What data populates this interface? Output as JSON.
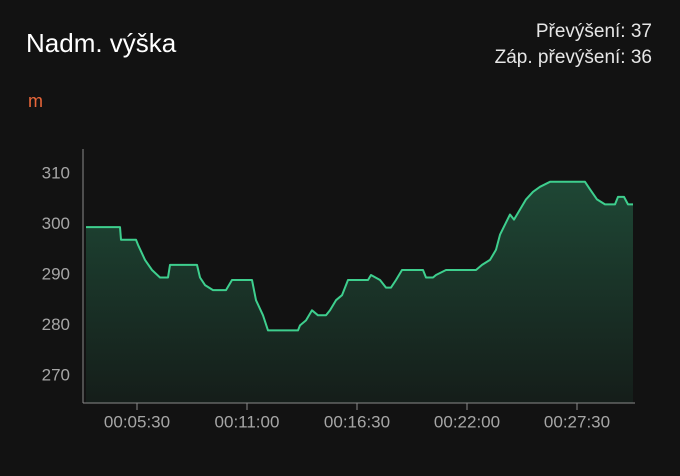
{
  "chart_data": {
    "type": "line",
    "title": "Nadm. výška",
    "stats": [
      "Převýšení: 37",
      "Záp. převýšení: 36"
    ],
    "y_label": "m",
    "color": "#3ecf8e",
    "x": [
      177,
      279,
      282,
      327,
      333,
      354,
      375,
      399,
      423,
      429,
      510,
      519,
      534,
      558,
      597,
      615,
      675,
      687,
      708,
      723,
      813,
      819,
      837,
      855,
      873,
      897,
      909,
      927,
      945,
      963,
      1023,
      1032,
      1059,
      1077,
      1092,
      1107,
      1125,
      1188,
      1197,
      1218,
      1227,
      1257,
      1347,
      1365,
      1389,
      1407,
      1419,
      1434,
      1449,
      1461,
      1479,
      1497,
      1518,
      1539,
      1569,
      1674,
      1689,
      1710,
      1734,
      1764,
      1773,
      1791,
      1803,
      1818
    ],
    "values": [
      299.5,
      299.5,
      297,
      297,
      296,
      293,
      291,
      289.5,
      289.5,
      292,
      292,
      289.5,
      288,
      287,
      287,
      289,
      289,
      285,
      282,
      279,
      279,
      280,
      281,
      283,
      282,
      282,
      283,
      285,
      286,
      289,
      289,
      290,
      289,
      287.5,
      287.5,
      289,
      291,
      291,
      289.5,
      289.5,
      290,
      291,
      291,
      292,
      293,
      295,
      298,
      300,
      302,
      301,
      303,
      305,
      306.5,
      307.5,
      308.5,
      308.5,
      307,
      305,
      304,
      304,
      305.5,
      305.5,
      304,
      304
    ],
    "xlim": [
      168,
      1824
    ],
    "ylim": [
      265,
      315
    ],
    "xticks": [
      {
        "value": 330,
        "label": "00:05:30"
      },
      {
        "value": 660,
        "label": "00:11:00"
      },
      {
        "value": 990,
        "label": "00:16:30"
      },
      {
        "value": 1320,
        "label": "00:22:00"
      },
      {
        "value": 1650,
        "label": "00:27:30"
      }
    ],
    "yticks": [
      270,
      280,
      290,
      300,
      310
    ]
  }
}
